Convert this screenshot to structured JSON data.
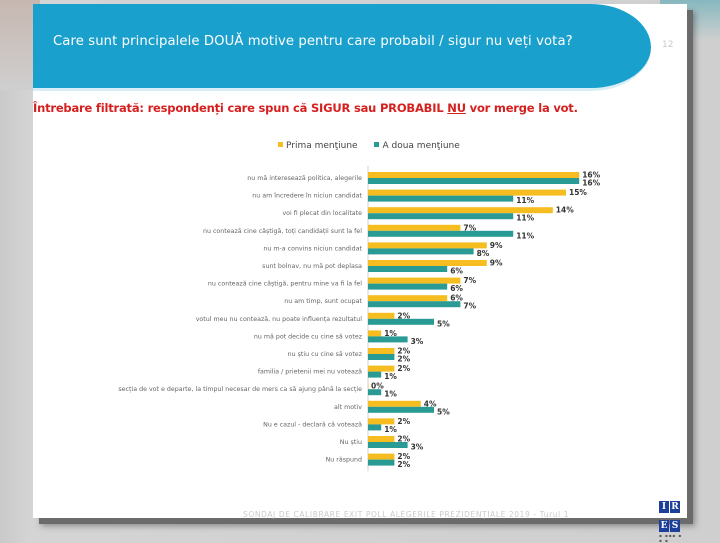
{
  "slide": {
    "title": "Care sunt principalele DOUĂ motive pentru care probabil / sigur nu veți vota?",
    "page_number": "12",
    "subtitle_part1": "Întrebare filtrată: respondenți care spun că SIGUR sau PROBABIL ",
    "subtitle_nu": "NU",
    "subtitle_part2": " vor merge la vot.",
    "footer": "SONDAJ DE CALIBRARE EXIT POLL ALEGERILE PREZIDENȚIALE 2019 - Turul 1",
    "logo_letters": [
      "I",
      "R",
      "E",
      "S"
    ],
    "logo_subtext": "INSTITUTUL ROMÂN PENTRU EVALUARE ȘI STRATEGIE"
  },
  "colors": {
    "banner": "#1aa0cd",
    "subtitle": "#d61f1f",
    "series1": "#f5bd1f",
    "series2": "#2a9a94"
  },
  "chart_data": {
    "type": "bar",
    "orientation": "horizontal",
    "title": "Care sunt principalele DOUĂ motive pentru care probabil / sigur nu veți vota?",
    "xlabel": "",
    "ylabel": "",
    "xlim": [
      0,
      16
    ],
    "grid": false,
    "legend": {
      "position": "top",
      "entries": [
        "Prima menţiune",
        "A doua menţiune"
      ]
    },
    "categories": [
      "nu mă interesează politica, alegerile",
      "nu am încredere în niciun candidat",
      "voi fi plecat din localitate",
      "nu contează cine câștigă, toți candidații sunt la fel",
      "nu m-a convins niciun candidat",
      "sunt bolnav, nu mă pot deplasa",
      "nu contează cine câștigă, pentru mine va fi la fel",
      "nu am timp, sunt ocupat",
      "votul meu nu contează, nu poate influența rezultatul",
      "nu mă pot decide cu cine să votez",
      "nu știu cu cine să votez",
      "familia / prietenii mei nu votează",
      "secția de vot e departe, la timpul necesar de mers ca să ajung până la secție",
      "alt motiv",
      "Nu e cazul - declară că votează",
      "Nu știu",
      "Nu răspund"
    ],
    "series": [
      {
        "name": "Prima menţiune",
        "values": [
          16,
          15,
          14,
          7,
          9,
          9,
          7,
          6,
          2,
          1,
          2,
          2,
          0,
          4,
          2,
          2,
          2
        ]
      },
      {
        "name": "A doua menţiune",
        "values": [
          16,
          11,
          11,
          11,
          8,
          6,
          6,
          7,
          5,
          3,
          2,
          1,
          1,
          5,
          1,
          3,
          2
        ]
      }
    ],
    "value_labels_suffix": "%"
  }
}
